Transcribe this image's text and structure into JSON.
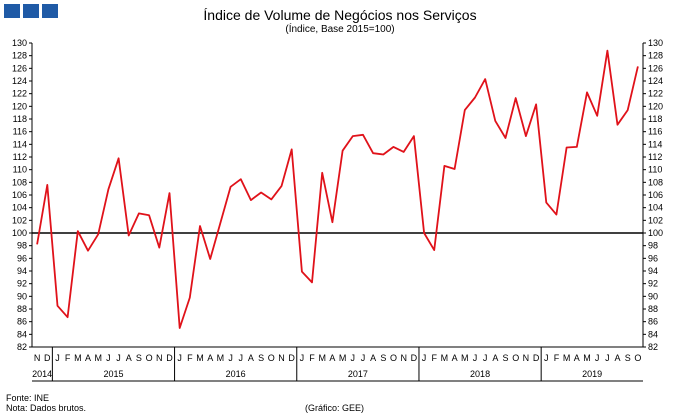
{
  "header": {
    "title": "Índice de Volume de Negócios nos Serviços",
    "subtitle": "(Índice, Base 2015=100)"
  },
  "footer": {
    "source": "Fonte: INE",
    "note": "Nota: Dados brutos.",
    "credit": "(Gráfico: GEE)"
  },
  "colors": {
    "logo": "#1f5aa6",
    "series": "#e0121a",
    "baseline": "#000000"
  },
  "chart_data": {
    "type": "line",
    "title": "Índice de Volume de Negócios nos Serviços",
    "subtitle": "(Índice, Base 2015=100)",
    "ylim": [
      82,
      130
    ],
    "yticks": [
      82,
      84,
      86,
      88,
      90,
      92,
      94,
      96,
      98,
      100,
      102,
      104,
      106,
      108,
      110,
      112,
      114,
      116,
      118,
      120,
      122,
      124,
      126,
      128,
      130
    ],
    "reference_line": 100,
    "axes": "left and right",
    "grid": false,
    "month_labels": [
      "N",
      "D",
      "J",
      "F",
      "M",
      "A",
      "M",
      "J",
      "J",
      "A",
      "S",
      "O",
      "N",
      "D",
      "J",
      "F",
      "M",
      "A",
      "M",
      "J",
      "J",
      "A",
      "S",
      "O",
      "N",
      "D",
      "J",
      "F",
      "M",
      "A",
      "M",
      "J",
      "J",
      "A",
      "S",
      "O",
      "N",
      "D",
      "J",
      "F",
      "M",
      "A",
      "M",
      "J",
      "J",
      "A",
      "S",
      "O",
      "N",
      "D",
      "J",
      "F",
      "M",
      "A",
      "M",
      "J",
      "J",
      "A",
      "S",
      "O"
    ],
    "years": [
      {
        "label": "2014",
        "start": 0,
        "end": 1
      },
      {
        "label": "2015",
        "start": 2,
        "end": 13
      },
      {
        "label": "2016",
        "start": 14,
        "end": 25
      },
      {
        "label": "2017",
        "start": 26,
        "end": 37
      },
      {
        "label": "2018",
        "start": 38,
        "end": 49
      },
      {
        "label": "2019",
        "start": 50,
        "end": 59
      }
    ],
    "values": [
      98.2,
      107.6,
      88.5,
      86.7,
      100.3,
      97.2,
      99.8,
      106.9,
      111.8,
      99.6,
      103.1,
      102.8,
      97.7,
      106.3,
      85.0,
      89.8,
      101.1,
      95.9,
      101.6,
      107.3,
      108.5,
      105.2,
      106.4,
      105.3,
      107.4,
      113.2,
      93.9,
      92.2,
      109.5,
      101.7,
      113.0,
      115.3,
      115.5,
      112.6,
      112.4,
      113.6,
      112.8,
      115.3,
      100.0,
      97.3,
      110.6,
      110.1,
      119.4,
      121.4,
      124.3,
      117.7,
      115.0,
      121.3,
      115.3,
      120.3,
      104.8,
      102.9,
      113.5,
      113.6,
      122.2,
      118.5,
      128.8,
      117.1,
      119.4,
      126.3
    ]
  }
}
